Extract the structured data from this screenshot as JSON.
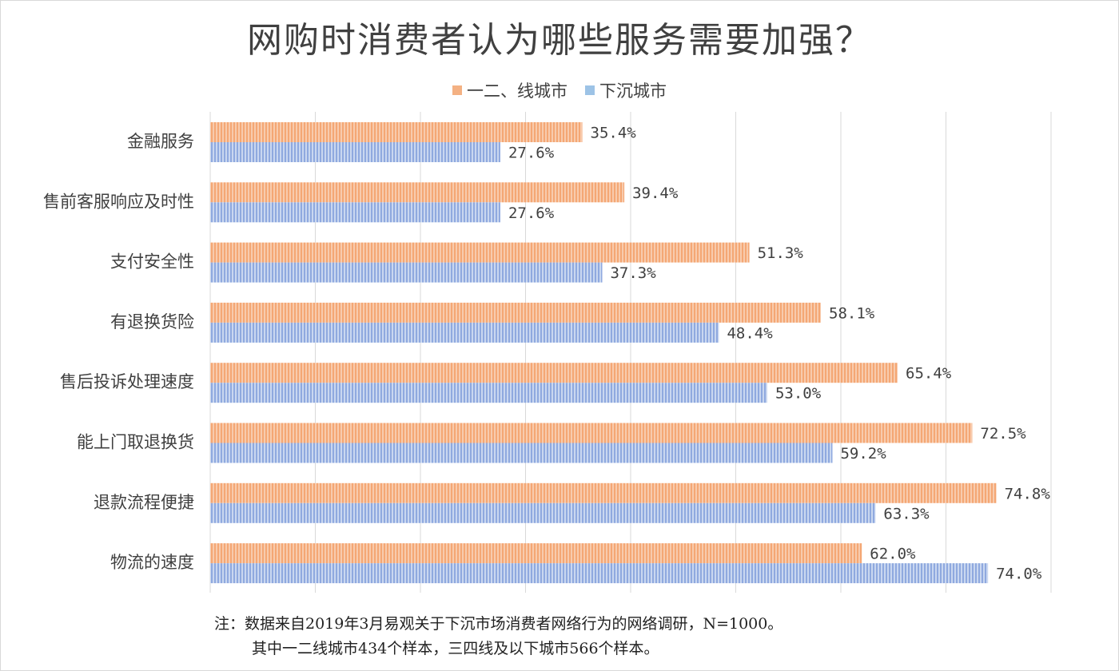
{
  "chart_data": {
    "type": "bar",
    "orientation": "horizontal",
    "title": "网购时消费者认为哪些服务需要加强？",
    "categories": [
      "金融服务",
      "售前客服响应及时性",
      "支付安全性",
      "有退换货险",
      "售后投诉处理速度",
      "能上门取退换货",
      "退款流程便捷",
      "物流的速度"
    ],
    "series": [
      {
        "name": "一二、线城市",
        "color": "#f4b183",
        "values": [
          35.4,
          39.4,
          51.3,
          58.1,
          65.4,
          72.5,
          74.8,
          62.0
        ],
        "labels": [
          "35.4%",
          "39.4%",
          "51.3%",
          "58.1%",
          "65.4%",
          "72.5%",
          "74.8%",
          "62.0%"
        ]
      },
      {
        "name": "下沉城市",
        "color": "#9dc3e6",
        "values": [
          27.6,
          27.6,
          37.3,
          48.4,
          53.0,
          59.2,
          63.3,
          74.0
        ],
        "labels": [
          "27.6%",
          "27.6%",
          "37.3%",
          "48.4%",
          "53.0%",
          "59.2%",
          "63.3%",
          "74.0%"
        ]
      }
    ],
    "xlim": [
      0,
      80
    ],
    "grid": true,
    "legend": "top-center"
  },
  "notes": {
    "line1": "注：数据来自2019年3月易观关于下沉市场消费者网络行为的网络调研，N=1000。",
    "line2": "其中一二线城市434个样本，三四线及以下城市566个样本。"
  }
}
